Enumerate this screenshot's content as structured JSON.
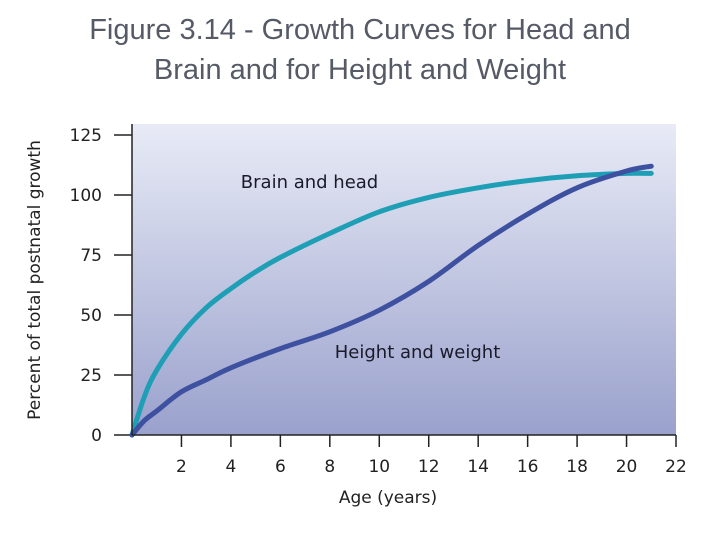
{
  "slide": {
    "title_line1": "Figure 3.14 - Growth Curves for Head and",
    "title_line2": "Brain and for Height and Weight"
  },
  "colors": {
    "plot_bg_top": "#e8ebf6",
    "plot_bg_bottom": "#9aa1cc",
    "brain_curve": "#1e9fb6",
    "height_curve": "#3e50a0",
    "axis": "#222222"
  },
  "chart_data": {
    "type": "line",
    "xlabel": "Age (years)",
    "ylabel": "Percent of total postnatal growth",
    "xlim": [
      0,
      22
    ],
    "ylim": [
      0,
      125
    ],
    "xticks": [
      2,
      4,
      6,
      8,
      10,
      12,
      14,
      16,
      18,
      20,
      22
    ],
    "yticks": [
      0,
      25,
      50,
      75,
      100,
      125
    ],
    "grid": false,
    "legend": "none",
    "series": [
      {
        "name": "Brain and head",
        "color": "#1e9fb6",
        "label_x": 4.4,
        "label_y": 103,
        "x": [
          0,
          0.5,
          1,
          2,
          3,
          4,
          5,
          6,
          8,
          10,
          12,
          14,
          16,
          18,
          20,
          21
        ],
        "y": [
          0,
          16,
          27,
          42,
          53,
          61,
          68,
          74,
          84,
          93,
          99,
          103,
          106,
          108,
          109,
          109
        ]
      },
      {
        "name": "Height and weight",
        "color": "#3e50a0",
        "label_x": 8.2,
        "label_y": 32,
        "x": [
          0,
          0.5,
          1,
          2,
          3,
          4,
          6,
          8,
          10,
          12,
          14,
          16,
          18,
          20,
          21
        ],
        "y": [
          0,
          6,
          10,
          18,
          23,
          28,
          36,
          43,
          52,
          64,
          79,
          92,
          103,
          110,
          112
        ]
      }
    ]
  }
}
